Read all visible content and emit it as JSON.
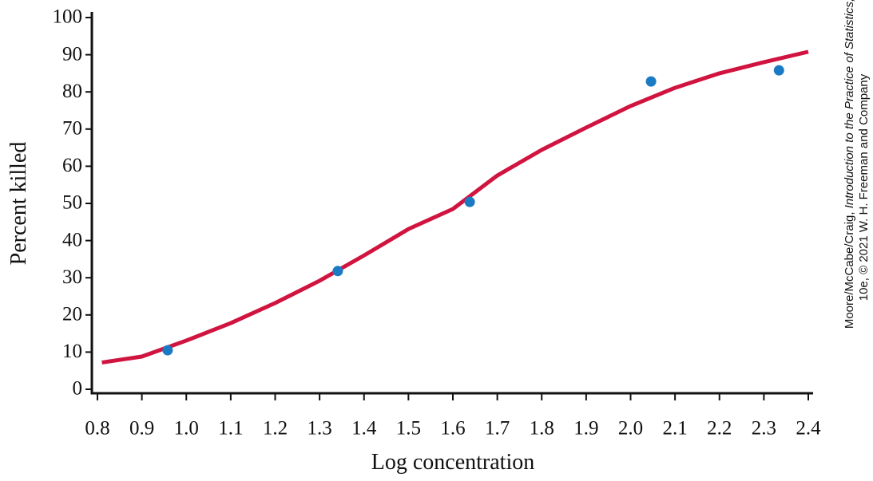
{
  "chart_data": {
    "type": "scatter",
    "x_label": "Log concentration",
    "y_label": "Percent killed",
    "xlim": [
      0.8,
      2.4
    ],
    "ylim": [
      0,
      100
    ],
    "xticks": [
      0.8,
      0.9,
      {
        "value": 1,
        "label": "1.0"
      },
      1.1,
      1.2,
      1.3,
      1.4,
      1.5,
      1.6,
      1.7,
      1.8,
      1.9,
      {
        "value": 2,
        "label": "2.0"
      },
      2.1,
      2.2,
      2.3,
      2.4
    ],
    "yticks": [
      0,
      10,
      20,
      30,
      40,
      50,
      60,
      70,
      80,
      90,
      100
    ],
    "series": [
      {
        "type": "scatter",
        "color": "#1a7bc4",
        "x": [
          0.958,
          1.341,
          1.638,
          2.046,
          2.334
        ],
        "values": [
          10.5,
          31.8,
          50.4,
          82.8,
          85.8
        ]
      },
      {
        "type": "line",
        "color": "#d1143f",
        "x": [
          0.81,
          0.9,
          1.0,
          1.1,
          1.2,
          1.3,
          1.4,
          1.5,
          1.6,
          1.7,
          1.8,
          1.9,
          2.0,
          2.1,
          2.2,
          2.3,
          2.4
        ],
        "values": [
          7.2,
          8.8,
          13.1,
          17.8,
          23.2,
          29.2,
          36.0,
          43.1,
          48.5,
          57.5,
          64.4,
          70.4,
          76.2,
          81.1,
          85.0,
          88.0,
          90.8
        ]
      }
    ]
  },
  "credit": {
    "authors": "Moore/McCabe/Craig, ",
    "book": "Introduction to the Practice of Statistics,",
    "edition": "10e, © 2021 W. H. Freeman and Company"
  }
}
